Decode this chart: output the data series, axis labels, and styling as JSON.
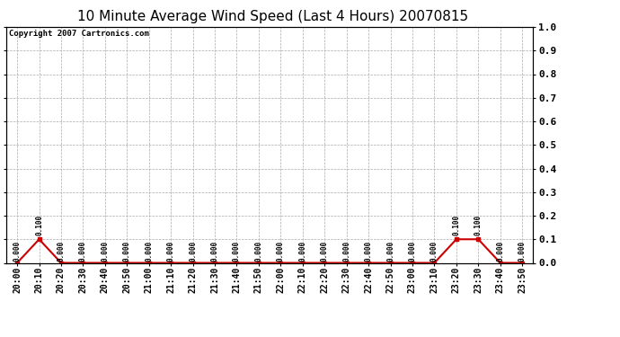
{
  "title": "10 Minute Average Wind Speed (Last 4 Hours) 20070815",
  "copyright_text": "Copyright 2007 Cartronics.com",
  "x_labels": [
    "20:00",
    "20:10",
    "20:20",
    "20:30",
    "20:40",
    "20:50",
    "21:00",
    "21:10",
    "21:20",
    "21:30",
    "21:40",
    "21:50",
    "22:00",
    "22:10",
    "22:20",
    "22:30",
    "22:40",
    "22:50",
    "23:00",
    "23:10",
    "23:20",
    "23:30",
    "23:40",
    "23:50"
  ],
  "y_values": [
    0.0,
    0.1,
    0.0,
    0.0,
    0.0,
    0.0,
    0.0,
    0.0,
    0.0,
    0.0,
    0.0,
    0.0,
    0.0,
    0.0,
    0.0,
    0.0,
    0.0,
    0.0,
    0.0,
    0.0,
    0.1,
    0.1,
    0.0,
    0.0
  ],
  "line_color": "#cc0000",
  "marker_color": "#cc0000",
  "bg_color": "#ffffff",
  "plot_bg_color": "#ffffff",
  "grid_color": "#aaaaaa",
  "ylim": [
    0.0,
    1.0
  ],
  "yticks": [
    0.0,
    0.1,
    0.2,
    0.3,
    0.4,
    0.5,
    0.6,
    0.7,
    0.8,
    0.9,
    1.0
  ],
  "title_fontsize": 11,
  "tick_fontsize": 7,
  "annotation_fontsize": 5.5,
  "copyright_fontsize": 6.5
}
